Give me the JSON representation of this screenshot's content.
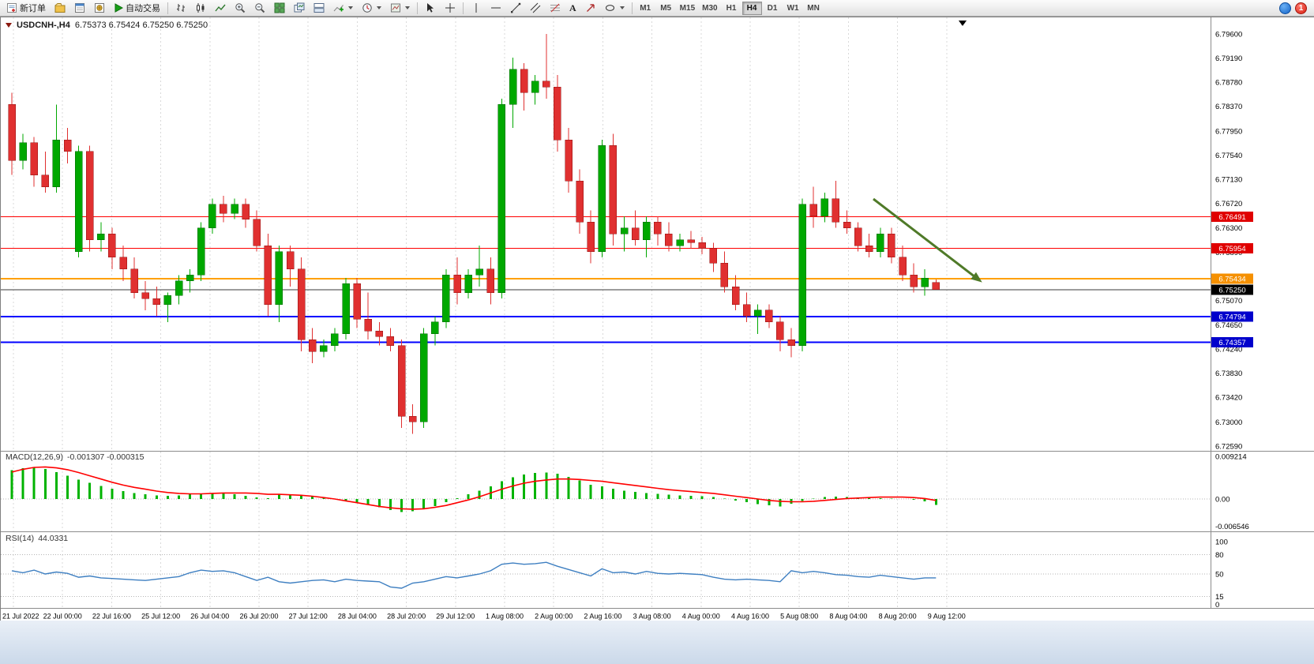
{
  "toolbar": {
    "new_order": "新订单",
    "autotrading": "自动交易",
    "timeframes": [
      "M1",
      "M5",
      "M15",
      "M30",
      "H1",
      "H4",
      "D1",
      "W1",
      "MN"
    ],
    "active_timeframe": "H4",
    "notification_badge": "1"
  },
  "icons": {
    "text_tool_glyph": "A"
  },
  "window": {
    "symbol_title": "USDCNH-,H4",
    "ohlc_line": "6.75373 6.75424 6.75250 6.75250"
  },
  "indicators": {
    "macd_label": "MACD(12,26,9)",
    "macd_values": "-0.001307 -0.000315",
    "rsi_label": "RSI(14)",
    "rsi_value": "44.0331"
  },
  "chart_data": {
    "type": "candlestick",
    "symbol": "USDCNH-",
    "timeframe": "H4",
    "title": "USDCNH-,H4",
    "ylim": [
      6.7259,
      6.796
    ],
    "grid": "vertical-dashed",
    "price_axis": [
      "6.79600",
      "6.79190",
      "6.78780",
      "6.78370",
      "6.77950",
      "6.77540",
      "6.77130",
      "6.76720",
      "6.76300",
      "6.75890",
      "6.75480",
      "6.75070",
      "6.74650",
      "6.74240",
      "6.73830",
      "6.73420",
      "6.73000",
      "6.72590"
    ],
    "time_axis": [
      "21 Jul 2022",
      "22 Jul 00:00",
      "22 Jul 16:00",
      "25 Jul 12:00",
      "26 Jul 04:00",
      "26 Jul 20:00",
      "27 Jul 12:00",
      "28 Jul 04:00",
      "28 Jul 20:00",
      "29 Jul 12:00",
      "1 Aug 08:00",
      "2 Aug 00:00",
      "2 Aug 16:00",
      "3 Aug 08:00",
      "4 Aug 00:00",
      "4 Aug 16:00",
      "5 Aug 08:00",
      "8 Aug 04:00",
      "8 Aug 20:00",
      "9 Aug 12:00"
    ],
    "candles": [
      [
        6.784,
        6.786,
        6.772,
        6.7745
      ],
      [
        6.7745,
        6.779,
        6.773,
        6.7775
      ],
      [
        6.7775,
        6.7785,
        6.77,
        6.772
      ],
      [
        6.772,
        6.776,
        6.769,
        6.77
      ],
      [
        6.77,
        6.784,
        6.769,
        6.778
      ],
      [
        6.778,
        6.78,
        6.774,
        6.776
      ],
      [
        6.759,
        6.777,
        6.758,
        6.776
      ],
      [
        6.776,
        6.777,
        6.759,
        6.761
      ],
      [
        6.761,
        6.764,
        6.759,
        6.762
      ],
      [
        6.762,
        6.763,
        6.756,
        6.758
      ],
      [
        6.758,
        6.76,
        6.754,
        6.756
      ],
      [
        6.756,
        6.758,
        6.751,
        6.752
      ],
      [
        6.752,
        6.754,
        6.749,
        6.751
      ],
      [
        6.751,
        6.753,
        6.748,
        6.75
      ],
      [
        6.75,
        6.752,
        6.747,
        6.7515
      ],
      [
        6.7515,
        6.755,
        6.75,
        6.754
      ],
      [
        6.754,
        6.756,
        6.752,
        6.755
      ],
      [
        6.755,
        6.764,
        6.754,
        6.763
      ],
      [
        6.763,
        6.768,
        6.762,
        6.767
      ],
      [
        6.767,
        6.7685,
        6.764,
        6.7655
      ],
      [
        6.7655,
        6.768,
        6.7645,
        6.767
      ],
      [
        6.767,
        6.768,
        6.763,
        6.7645
      ],
      [
        6.7645,
        6.766,
        6.759,
        6.76
      ],
      [
        6.76,
        6.762,
        6.748,
        6.75
      ],
      [
        6.75,
        6.76,
        6.747,
        6.759
      ],
      [
        6.759,
        6.76,
        6.753,
        6.756
      ],
      [
        6.756,
        6.758,
        6.742,
        6.744
      ],
      [
        6.744,
        6.746,
        6.74,
        6.742
      ],
      [
        6.742,
        6.744,
        6.741,
        6.743
      ],
      [
        6.743,
        6.746,
        6.742,
        6.745
      ],
      [
        6.745,
        6.7545,
        6.744,
        6.7535
      ],
      [
        6.7535,
        6.7545,
        6.746,
        6.7475
      ],
      [
        6.7475,
        6.752,
        6.744,
        6.7455
      ],
      [
        6.7455,
        6.747,
        6.743,
        6.7445
      ],
      [
        6.7445,
        6.746,
        6.742,
        6.743
      ],
      [
        6.743,
        6.744,
        6.729,
        6.731
      ],
      [
        6.731,
        6.733,
        6.728,
        6.73
      ],
      [
        6.73,
        6.746,
        6.729,
        6.745
      ],
      [
        6.745,
        6.748,
        6.743,
        6.747
      ],
      [
        6.747,
        6.756,
        6.746,
        6.755
      ],
      [
        6.755,
        6.758,
        6.75,
        6.752
      ],
      [
        6.752,
        6.756,
        6.751,
        6.755
      ],
      [
        6.755,
        6.76,
        6.753,
        6.756
      ],
      [
        6.756,
        6.758,
        6.75,
        6.752
      ],
      [
        6.752,
        6.785,
        6.751,
        6.784
      ],
      [
        6.784,
        6.792,
        6.78,
        6.79
      ],
      [
        6.79,
        6.791,
        6.783,
        6.786
      ],
      [
        6.786,
        6.789,
        6.784,
        6.788
      ],
      [
        6.788,
        6.796,
        6.785,
        6.787
      ],
      [
        6.787,
        6.789,
        6.776,
        6.778
      ],
      [
        6.778,
        6.78,
        6.769,
        6.771
      ],
      [
        6.771,
        6.773,
        6.762,
        6.764
      ],
      [
        6.764,
        6.766,
        6.757,
        6.759
      ],
      [
        6.759,
        6.778,
        6.758,
        6.777
      ],
      [
        6.777,
        6.779,
        6.76,
        6.762
      ],
      [
        6.762,
        6.765,
        6.759,
        6.763
      ],
      [
        6.763,
        6.766,
        6.76,
        6.761
      ],
      [
        6.761,
        6.765,
        6.758,
        6.764
      ],
      [
        6.764,
        6.765,
        6.76,
        6.762
      ],
      [
        6.762,
        6.764,
        6.759,
        6.76
      ],
      [
        6.76,
        6.762,
        6.759,
        6.761
      ],
      [
        6.761,
        6.7625,
        6.7595,
        6.7605
      ],
      [
        6.7605,
        6.7615,
        6.7585,
        6.7595
      ],
      [
        6.7595,
        6.7605,
        6.7555,
        6.757
      ],
      [
        6.757,
        6.759,
        6.752,
        6.753
      ],
      [
        6.753,
        6.755,
        6.749,
        6.75
      ],
      [
        6.75,
        6.752,
        6.747,
        6.748
      ],
      [
        6.748,
        6.75,
        6.745,
        6.749
      ],
      [
        6.749,
        6.75,
        6.746,
        6.747
      ],
      [
        6.747,
        6.748,
        6.742,
        6.744
      ],
      [
        6.744,
        6.746,
        6.741,
        6.743
      ],
      [
        6.743,
        6.768,
        6.742,
        6.767
      ],
      [
        6.767,
        6.77,
        6.763,
        6.765
      ],
      [
        6.765,
        6.769,
        6.764,
        6.768
      ],
      [
        6.768,
        6.771,
        6.763,
        6.764
      ],
      [
        6.764,
        6.766,
        6.762,
        6.763
      ],
      [
        6.763,
        6.764,
        6.759,
        6.76
      ],
      [
        6.76,
        6.762,
        6.758,
        6.759
      ],
      [
        6.759,
        6.763,
        6.758,
        6.762
      ],
      [
        6.762,
        6.763,
        6.757,
        6.758
      ],
      [
        6.758,
        6.76,
        6.754,
        6.755
      ],
      [
        6.755,
        6.757,
        6.752,
        6.753
      ],
      [
        6.753,
        6.756,
        6.7515,
        6.7545
      ],
      [
        6.75373,
        6.75424,
        6.7525,
        6.7525
      ]
    ],
    "hlines": [
      {
        "price": 6.76491,
        "label": "6.76491",
        "color": "#FF0000",
        "width": 1,
        "badge": "#E00000"
      },
      {
        "price": 6.75954,
        "label": "6.75954",
        "color": "#FF0000",
        "width": 1,
        "badge": "#E00000"
      },
      {
        "price": 6.75434,
        "label": "6.75434",
        "color": "#FFA000",
        "width": 2,
        "badge": "#F59000"
      },
      {
        "price": 6.74794,
        "label": "6.74794",
        "color": "#0000FF",
        "width": 2,
        "badge": "#0000CC"
      },
      {
        "price": 6.74357,
        "label": "6.74357",
        "color": "#0000FF",
        "width": 2,
        "badge": "#0000CC"
      }
    ],
    "current_price": {
      "value": 6.7525,
      "label": "6.75250",
      "color": "#3a3a3a",
      "badge": "#000000"
    },
    "annotation_arrow": {
      "color": "#4F7A28"
    },
    "macd": {
      "histogram": [
        0.0062,
        0.0066,
        0.0068,
        0.0065,
        0.0058,
        0.005,
        0.0042,
        0.0035,
        0.0028,
        0.0022,
        0.0017,
        0.0013,
        0.001,
        0.0008,
        0.0007,
        0.0008,
        0.001,
        0.0012,
        0.0013,
        0.0012,
        0.001,
        0.0007,
        0.0003,
        0.0002,
        0.001,
        0.0009,
        0.0007,
        0.0005,
        0.0003,
        0.0001,
        -0.0003,
        -0.0008,
        -0.0013,
        -0.0018,
        -0.0024,
        -0.0028,
        -0.0026,
        -0.0022,
        -0.0015,
        -0.0007,
        0.0002,
        0.001,
        0.0018,
        0.0027,
        0.0038,
        0.0047,
        0.0053,
        0.0056,
        0.0057,
        0.0054,
        0.0048,
        0.004,
        0.0031,
        0.0027,
        0.0022,
        0.0018,
        0.0015,
        0.0013,
        0.0011,
        0.0009,
        0.0008,
        0.0007,
        0.0006,
        0.0004,
        0.0001,
        -0.0003,
        -0.0007,
        -0.0011,
        -0.0014,
        -0.0016,
        -0.001,
        -0.0004,
        0.0001,
        0.0004,
        0.0005,
        0.0004,
        0.0003,
        0.0002,
        0.0002,
        0.0001,
        0.0,
        -0.0002,
        -0.0005,
        -0.0013
      ],
      "signal": [
        0.0058,
        0.0064,
        0.0068,
        0.0069,
        0.0067,
        0.0063,
        0.0057,
        0.005,
        0.0043,
        0.0036,
        0.003,
        0.0025,
        0.0021,
        0.0017,
        0.0014,
        0.0012,
        0.0011,
        0.0011,
        0.0012,
        0.0013,
        0.0013,
        0.0013,
        0.0012,
        0.001,
        0.001,
        0.0009,
        0.0008,
        0.0006,
        0.0003,
        0.0,
        -0.0004,
        -0.0008,
        -0.0012,
        -0.0016,
        -0.0019,
        -0.0021,
        -0.0022,
        -0.0021,
        -0.0018,
        -0.0014,
        -0.0008,
        -0.0002,
        0.0005,
        0.0013,
        0.0021,
        0.0028,
        0.0034,
        0.0038,
        0.0041,
        0.0043,
        0.0043,
        0.0042,
        0.004,
        0.0038,
        0.0035,
        0.0032,
        0.0029,
        0.0026,
        0.0023,
        0.002,
        0.0018,
        0.0016,
        0.0014,
        0.0012,
        0.0009,
        0.0006,
        0.0003,
        0.0,
        -0.0003,
        -0.0005,
        -0.0006,
        -0.0006,
        -0.0005,
        -0.0003,
        -0.0001,
        0.0001,
        0.0002,
        0.0003,
        0.0004,
        0.0004,
        0.0004,
        0.0003,
        0.0001,
        -0.0003
      ],
      "axis": [
        "0.009214",
        "0.00",
        "-0.006546"
      ]
    },
    "rsi": {
      "values": [
        55,
        52,
        56,
        50,
        53,
        51,
        45,
        47,
        44,
        43,
        42,
        41,
        40,
        42,
        44,
        46,
        52,
        56,
        54,
        55,
        52,
        46,
        40,
        45,
        38,
        36,
        38,
        40,
        41,
        38,
        42,
        40,
        39,
        38,
        30,
        28,
        36,
        38,
        42,
        46,
        44,
        47,
        50,
        55,
        65,
        67,
        65,
        66,
        68,
        62,
        57,
        52,
        47,
        58,
        52,
        53,
        50,
        54,
        51,
        50,
        51,
        50,
        49,
        45,
        42,
        41,
        42,
        41,
        40,
        38,
        55,
        52,
        54,
        52,
        49,
        48,
        46,
        45,
        48,
        46,
        44,
        42,
        44,
        44.03
      ],
      "levels": [
        80,
        50,
        15
      ],
      "axis": [
        "100",
        "80",
        "50",
        "15",
        "0"
      ]
    },
    "colors": {
      "up": "#00A800",
      "down": "#E03030",
      "macd_hist": "#00B300",
      "macd_signal": "#FF0000",
      "rsi_line": "#3E7FC1",
      "grid": "#D9D9D9"
    }
  }
}
